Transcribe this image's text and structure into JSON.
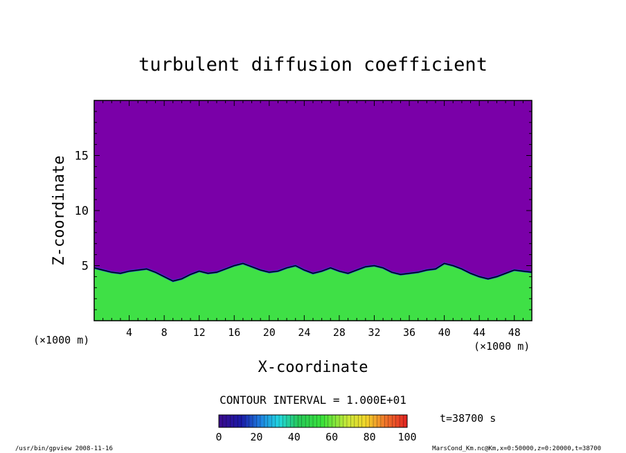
{
  "chart_data": {
    "type": "heatmap",
    "title": "turbulent diffusion coefficient",
    "xlabel": "X-coordinate",
    "ylabel": "Z-coordinate",
    "x_unit": "(×1000 m)",
    "y_unit": "(×1000 m)",
    "xlim": [
      0,
      50
    ],
    "ylim": [
      0,
      20
    ],
    "x_ticks": [
      4,
      8,
      12,
      16,
      20,
      24,
      28,
      32,
      36,
      40,
      44,
      48
    ],
    "y_ticks": [
      5,
      10,
      15
    ],
    "contour_interval_text": "CONTOUR INTERVAL = 1.000E+01",
    "time_text": "t=38700 s",
    "colorbar": {
      "min": 0,
      "max": 100,
      "ticks": [
        0,
        20,
        40,
        60,
        80,
        100
      ],
      "background_color": "#7a00a8"
    },
    "boundary_layer_top": {
      "x": [
        0,
        1,
        2,
        3,
        4,
        5,
        6,
        7,
        8,
        9,
        10,
        11,
        12,
        13,
        14,
        15,
        16,
        17,
        18,
        19,
        20,
        21,
        22,
        23,
        24,
        25,
        26,
        27,
        28,
        29,
        30,
        31,
        32,
        33,
        34,
        35,
        36,
        37,
        38,
        39,
        40,
        41,
        42,
        43,
        44,
        45,
        46,
        47,
        48,
        49,
        50
      ],
      "z": [
        4.8,
        4.6,
        4.4,
        4.3,
        4.5,
        4.6,
        4.7,
        4.4,
        4.0,
        3.6,
        3.8,
        4.2,
        4.5,
        4.3,
        4.4,
        4.7,
        5.0,
        5.2,
        4.9,
        4.6,
        4.4,
        4.5,
        4.8,
        5.0,
        4.6,
        4.3,
        4.5,
        4.8,
        4.5,
        4.3,
        4.6,
        4.9,
        5.0,
        4.8,
        4.4,
        4.2,
        4.3,
        4.4,
        4.6,
        4.7,
        5.2,
        5.0,
        4.7,
        4.3,
        4.0,
        3.8,
        4.0,
        4.3,
        4.6,
        4.5,
        4.4
      ]
    }
  },
  "footer": {
    "left": "/usr/bin/gpview   2008-11-16",
    "right": "MarsCond_Km.nc@Km,x=0:50000,z=0:20000,t=38700"
  }
}
